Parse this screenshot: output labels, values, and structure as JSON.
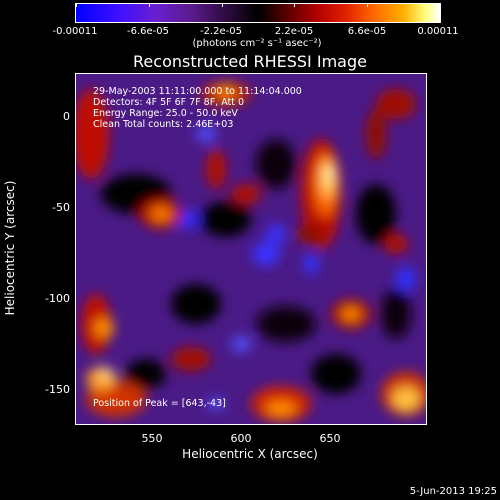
{
  "colorbar": {
    "ticks": [
      "-0.00011",
      "-6.6e-05",
      "-2.2e-05",
      "2.2e-05",
      "6.6e-05",
      "0.00011"
    ],
    "units": "(photons cm⁻² s⁻¹ asec⁻²)"
  },
  "title": "Reconstructed RHESSI Image",
  "info": {
    "line1": "29-May-2003 11:11:00.000 to 11:14:04.000",
    "line2": "Detectors: 4F 5F 6F 7F 8F, Att 0",
    "line3": "Energy Range: 25.0 - 50.0 keV",
    "line4": "Clean     Total counts: 2.46E+03",
    "peak": "Position of Peak = [643,-43]"
  },
  "axes": {
    "xlabel": "Heliocentric X (arcsec)",
    "ylabel": "Heliocentric Y (arcsec)",
    "xticks": [
      "550",
      "600",
      "650"
    ],
    "yticks": [
      "0",
      "-50",
      "-100",
      "-150"
    ]
  },
  "timestamp": "5-Jun-2013 19:25"
}
